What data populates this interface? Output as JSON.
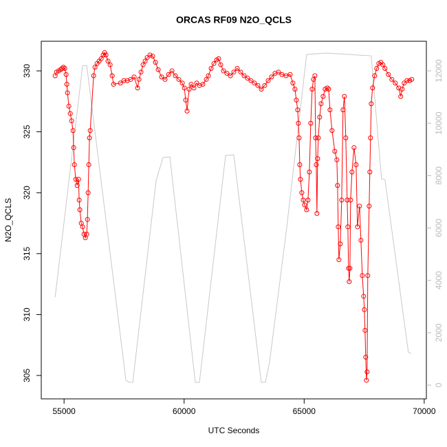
{
  "chart_data": {
    "type": "line",
    "title": "ORCAS RF09 N2O_QCLS",
    "x_label": "UTC Seconds",
    "y_label": "N2O_QCLS",
    "xlim": [
      54050,
      70090
    ],
    "xticks": [
      55000,
      60000,
      65000,
      70000
    ],
    "ylim": [
      303.08,
      332.43
    ],
    "yticks": [
      305,
      310,
      315,
      320,
      325,
      330
    ],
    "y2lim": [
      -525,
      13130
    ],
    "y2ticks": [
      0,
      2000,
      4000,
      6000,
      8000,
      10000,
      12000
    ],
    "series": [
      {
        "color": "#c8c8c8",
        "axis": "y2",
        "markers": false,
        "x": [
          54628,
          55773,
          55944,
          57576,
          57719,
          57862,
          58835,
          59121,
          59407,
          60466,
          60638,
          61726,
          62069,
          63214,
          63386,
          63558,
          64273,
          65103,
          65933,
          67793,
          68222,
          68366,
          69339,
          69453
        ],
        "values": [
          3360,
          12200,
          12200,
          184,
          105,
          105,
          7822,
          8689,
          8715,
          105,
          105,
          8767,
          8794,
          105,
          105,
          866,
          6011,
          12626,
          12679,
          12574,
          7875,
          7849,
          1260,
          1208
        ]
      },
      {
        "color": "#ff0000",
        "axis": "y",
        "markers": true,
        "x": [
          54628,
          54685,
          54771,
          54857,
          54914,
          54971,
          55029,
          55086,
          55114,
          55143,
          55200,
          55258,
          55315,
          55372,
          55401,
          55429,
          55487,
          55544,
          55601,
          55630,
          55658,
          55716,
          55773,
          55830,
          55887,
          55944,
          55973,
          56002,
          56030,
          56059,
          56088,
          56231,
          56288,
          56374,
          56460,
          56545,
          56631,
          56689,
          56746,
          56832,
          56918,
          57003,
          57061,
          57347,
          57490,
          57633,
          57776,
          57919,
          58062,
          58120,
          58205,
          58291,
          58377,
          58463,
          58578,
          58692,
          58806,
          58921,
          59064,
          59207,
          59350,
          59493,
          59636,
          59780,
          59923,
          60009,
          60066,
          60123,
          60209,
          60295,
          60409,
          60524,
          60638,
          60781,
          60924,
          61010,
          61125,
          61239,
          61354,
          61440,
          61525,
          61640,
          61783,
          61926,
          62069,
          62212,
          62355,
          62498,
          62642,
          62785,
          62928,
          63071,
          63214,
          63357,
          63500,
          63643,
          63786,
          63929,
          64072,
          64244,
          64416,
          64530,
          64616,
          64673,
          64731,
          64759,
          64788,
          64817,
          64845,
          64902,
          64960,
          65017,
          65103,
          65160,
          65217,
          65275,
          65332,
          65389,
          65446,
          65475,
          65503,
          65532,
          65561,
          65589,
          65646,
          65704,
          65790,
          65876,
          65961,
          66018,
          66076,
          66161,
          66276,
          66362,
          66390,
          66419,
          66448,
          66505,
          66562,
          66619,
          66677,
          66734,
          66791,
          66820,
          66848,
          66877,
          66906,
          66934,
          66991,
          67077,
          67163,
          67220,
          67306,
          67364,
          67421,
          67478,
          67507,
          67535,
          67564,
          67593,
          67621,
          67650,
          67707,
          67736,
          67764,
          67793,
          67850,
          67936,
          68022,
          68108,
          68194,
          68279,
          68365,
          68508,
          68651,
          68794,
          68937,
          69023,
          69080,
          69166,
          69281,
          69395,
          69481
        ],
        "values": [
          329.6,
          329.9,
          330.0,
          330.1,
          330.2,
          330.3,
          330.2,
          329.7,
          328.9,
          328.2,
          327.1,
          326.5,
          325.9,
          325.1,
          323.7,
          322.3,
          321.1,
          320.6,
          321.1,
          319.4,
          318.6,
          317.5,
          317.2,
          316.6,
          316.3,
          316.6,
          317.8,
          320.0,
          322.3,
          324.5,
          325.1,
          329.6,
          330.3,
          330.6,
          330.8,
          331.0,
          331.3,
          331.5,
          331.3,
          330.8,
          330.5,
          329.6,
          328.9,
          329.0,
          329.2,
          329.2,
          329.3,
          329.5,
          328.6,
          329.3,
          329.9,
          330.5,
          330.8,
          331.1,
          331.3,
          331.2,
          330.7,
          330.1,
          329.5,
          329.3,
          329.7,
          330.0,
          329.6,
          329.3,
          329.0,
          328.6,
          327.6,
          326.7,
          328.5,
          328.9,
          328.6,
          329.0,
          328.8,
          328.9,
          329.3,
          329.6,
          330.2,
          330.6,
          330.9,
          331.0,
          330.5,
          330.0,
          329.8,
          329.6,
          329.9,
          330.2,
          329.9,
          329.6,
          329.4,
          329.2,
          329.0,
          328.8,
          328.5,
          328.8,
          329.2,
          329.5,
          329.8,
          329.9,
          329.7,
          329.6,
          329.7,
          329.0,
          328.5,
          327.6,
          326.8,
          325.7,
          324.5,
          322.3,
          321.1,
          320.0,
          319.4,
          319.0,
          318.6,
          319.4,
          321.7,
          325.7,
          328.5,
          329.3,
          329.6,
          324.5,
          322.3,
          318.3,
          322.8,
          324.5,
          326.2,
          327.3,
          327.9,
          328.5,
          328.6,
          328.5,
          326.8,
          325.1,
          323.4,
          322.7,
          320.6,
          317.2,
          314.5,
          315.8,
          319.4,
          326.8,
          327.9,
          324.5,
          319.4,
          317.2,
          313.8,
          312.7,
          313.8,
          319.4,
          321.7,
          323.7,
          322.3,
          317.2,
          318.9,
          316.1,
          313.2,
          311.5,
          310.4,
          308.7,
          306.5,
          304.6,
          305.3,
          313.2,
          318.9,
          321.7,
          324.5,
          327.3,
          328.6,
          329.6,
          330.2,
          330.6,
          330.7,
          330.5,
          330.2,
          329.7,
          329.3,
          329.0,
          328.6,
          327.9,
          328.5,
          329.0,
          329.2,
          329.2,
          329.3
        ]
      }
    ]
  }
}
